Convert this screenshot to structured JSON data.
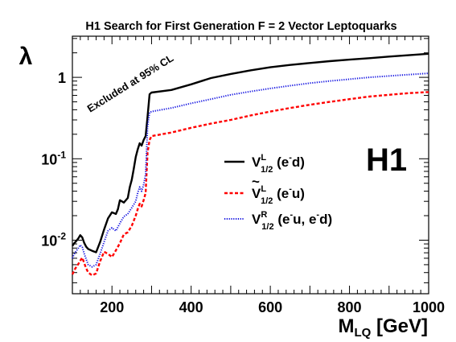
{
  "chart_data": {
    "type": "line",
    "title": "H1 Search for First Generation F = 2 Vector Leptoquarks",
    "xlabel": "M",
    "xlabel_sub": "LQ",
    "xlabel_unit": " [GeV]",
    "ylabel": "λ",
    "xlim": [
      100,
      1000
    ],
    "ylim": [
      0.0022,
      3.2
    ],
    "yscale": "log",
    "grid": false,
    "legend_position": "right-middle",
    "x_ticks": [
      200,
      400,
      600,
      800,
      1000
    ],
    "x_tick_labels": [
      "200",
      "400",
      "600",
      "800",
      "1000"
    ],
    "y_ticks": [
      0.01,
      0.1,
      1
    ],
    "y_tick_labels": [
      {
        "base": "10",
        "exp": "-2"
      },
      {
        "base": "10",
        "exp": "-1"
      },
      {
        "base": "1",
        "exp": ""
      }
    ],
    "annotation": "Excluded at 95% CL",
    "logo": "H1",
    "series": [
      {
        "name": "V_{1/2}^L (e^-d)",
        "legend": {
          "main": "V",
          "sup": "L",
          "sub": "1/2",
          "rest": " (e",
          "rest_sup": "-",
          "rest_end": "d)"
        },
        "color": "#000000",
        "style": "solid",
        "points": [
          [
            100,
            0.0085
          ],
          [
            105,
            0.0092
          ],
          [
            110,
            0.0098
          ],
          [
            115,
            0.0105
          ],
          [
            120,
            0.0115
          ],
          [
            125,
            0.0108
          ],
          [
            130,
            0.0092
          ],
          [
            135,
            0.0083
          ],
          [
            140,
            0.0078
          ],
          [
            150,
            0.0074
          ],
          [
            160,
            0.0071
          ],
          [
            170,
            0.0095
          ],
          [
            180,
            0.0135
          ],
          [
            190,
            0.0185
          ],
          [
            200,
            0.022
          ],
          [
            210,
            0.021
          ],
          [
            215,
            0.024
          ],
          [
            220,
            0.031
          ],
          [
            230,
            0.029
          ],
          [
            240,
            0.033
          ],
          [
            245,
            0.045
          ],
          [
            250,
            0.055
          ],
          [
            255,
            0.075
          ],
          [
            260,
            0.105
          ],
          [
            265,
            0.13
          ],
          [
            270,
            0.155
          ],
          [
            275,
            0.145
          ],
          [
            280,
            0.17
          ],
          [
            285,
            0.19
          ],
          [
            290,
            0.33
          ],
          [
            295,
            0.62
          ],
          [
            300,
            0.65
          ],
          [
            350,
            0.7
          ],
          [
            400,
            0.82
          ],
          [
            450,
            0.98
          ],
          [
            500,
            1.1
          ],
          [
            550,
            1.22
          ],
          [
            600,
            1.33
          ],
          [
            650,
            1.42
          ],
          [
            700,
            1.5
          ],
          [
            750,
            1.58
          ],
          [
            800,
            1.65
          ],
          [
            850,
            1.72
          ],
          [
            900,
            1.8
          ],
          [
            950,
            1.87
          ],
          [
            1000,
            1.95
          ]
        ]
      },
      {
        "name": "Ṽ_{1/2}^L (e^-u)",
        "legend": {
          "main": "V",
          "tilde": true,
          "sup": "L",
          "sub": "1/2",
          "rest": " (e",
          "rest_sup": "-",
          "rest_end": "u)"
        },
        "color": "#ff0000",
        "style": "dashed",
        "points": [
          [
            100,
            0.0038
          ],
          [
            105,
            0.0043
          ],
          [
            110,
            0.0047
          ],
          [
            115,
            0.0051
          ],
          [
            120,
            0.0056
          ],
          [
            125,
            0.0061
          ],
          [
            130,
            0.0052
          ],
          [
            135,
            0.0045
          ],
          [
            140,
            0.004
          ],
          [
            150,
            0.0037
          ],
          [
            160,
            0.0039
          ],
          [
            170,
            0.0055
          ],
          [
            180,
            0.0072
          ],
          [
            190,
            0.0068
          ],
          [
            200,
            0.0062
          ],
          [
            210,
            0.0075
          ],
          [
            220,
            0.0092
          ],
          [
            230,
            0.0118
          ],
          [
            240,
            0.0125
          ],
          [
            250,
            0.015
          ],
          [
            260,
            0.02
          ],
          [
            265,
            0.024
          ],
          [
            270,
            0.028
          ],
          [
            275,
            0.026
          ],
          [
            280,
            0.031
          ],
          [
            285,
            0.038
          ],
          [
            290,
            0.12
          ],
          [
            295,
            0.17
          ],
          [
            300,
            0.19
          ],
          [
            350,
            0.21
          ],
          [
            400,
            0.24
          ],
          [
            450,
            0.27
          ],
          [
            500,
            0.3
          ],
          [
            550,
            0.34
          ],
          [
            600,
            0.38
          ],
          [
            650,
            0.42
          ],
          [
            700,
            0.46
          ],
          [
            750,
            0.5
          ],
          [
            800,
            0.54
          ],
          [
            850,
            0.58
          ],
          [
            900,
            0.61
          ],
          [
            950,
            0.64
          ],
          [
            1000,
            0.66
          ]
        ]
      },
      {
        "name": "V_{1/2}^R (e^-u, e^-d)",
        "legend": {
          "main": "V",
          "sup": "R",
          "sub": "1/2",
          "rest": " (e",
          "rest_sup": "-",
          "rest_mid": "u, e",
          "rest_sup2": "-",
          "rest_end": "d)"
        },
        "color": "#1010e0",
        "style": "dotted",
        "points": [
          [
            100,
            0.006
          ],
          [
            105,
            0.0068
          ],
          [
            110,
            0.0074
          ],
          [
            115,
            0.008
          ],
          [
            120,
            0.0087
          ],
          [
            125,
            0.0082
          ],
          [
            130,
            0.0068
          ],
          [
            135,
            0.0058
          ],
          [
            140,
            0.005
          ],
          [
            150,
            0.0047
          ],
          [
            160,
            0.005
          ],
          [
            170,
            0.0068
          ],
          [
            180,
            0.0095
          ],
          [
            190,
            0.013
          ],
          [
            200,
            0.0142
          ],
          [
            210,
            0.013
          ],
          [
            220,
            0.0162
          ],
          [
            230,
            0.0195
          ],
          [
            240,
            0.021
          ],
          [
            250,
            0.025
          ],
          [
            260,
            0.03
          ],
          [
            265,
            0.038
          ],
          [
            270,
            0.045
          ],
          [
            275,
            0.04
          ],
          [
            280,
            0.048
          ],
          [
            285,
            0.065
          ],
          [
            290,
            0.25
          ],
          [
            295,
            0.37
          ],
          [
            300,
            0.38
          ],
          [
            350,
            0.42
          ],
          [
            400,
            0.48
          ],
          [
            450,
            0.54
          ],
          [
            500,
            0.61
          ],
          [
            550,
            0.67
          ],
          [
            600,
            0.73
          ],
          [
            650,
            0.79
          ],
          [
            700,
            0.85
          ],
          [
            750,
            0.9
          ],
          [
            800,
            0.95
          ],
          [
            850,
            1.0
          ],
          [
            900,
            1.04
          ],
          [
            950,
            1.08
          ],
          [
            1000,
            1.12
          ]
        ]
      }
    ]
  }
}
